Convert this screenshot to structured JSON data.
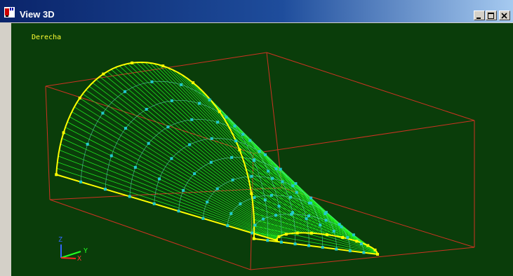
{
  "window": {
    "title": "View 3D",
    "accent": "#0a246a"
  },
  "viewport": {
    "view_label": "Derecha",
    "background": "#0a3d0a",
    "bbox_color": "#cc3322",
    "mesh_color": "#22ff22",
    "edge_color": "#ffff00",
    "point_color": "#22cccc"
  },
  "axes": {
    "z_label": "Z",
    "y_label": "Y",
    "x_label": "X"
  },
  "icons": [
    "app-icon",
    "minimize-icon",
    "maximize-icon",
    "close-icon"
  ]
}
